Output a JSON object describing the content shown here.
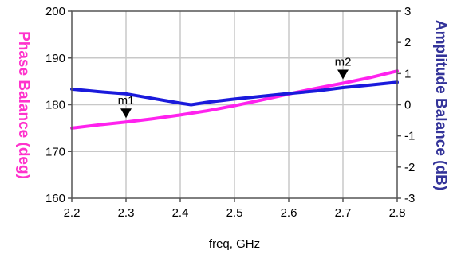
{
  "chart_data": {
    "type": "line",
    "xlabel": "freq, GHz",
    "xlim": [
      2.2,
      2.8
    ],
    "xticks": [
      2.2,
      2.3,
      2.4,
      2.5,
      2.6,
      2.7,
      2.8
    ],
    "xtick_labels": [
      "2.2",
      "2.3",
      "2.4",
      "2.5",
      "2.6",
      "2.7",
      "2.8"
    ],
    "y_left": {
      "label": "Phase Balance (deg)",
      "color": "#ff33cc",
      "lim": [
        160,
        200
      ],
      "ticks": [
        160,
        170,
        180,
        190,
        200
      ],
      "tick_labels": [
        "160",
        "170",
        "180",
        "190",
        "200"
      ]
    },
    "y_right": {
      "label": "Amplitude Balance (dB)",
      "color": "#333399",
      "lim": [
        -3,
        3
      ],
      "ticks": [
        -3,
        -2,
        -1,
        0,
        1,
        2,
        3
      ],
      "tick_labels": [
        "-3",
        "-2",
        "-1",
        "0",
        "1",
        "2",
        "3"
      ]
    },
    "grid": true,
    "series": [
      {
        "axis": "left",
        "color": "#ff22ee",
        "x": [
          2.2,
          2.25,
          2.3,
          2.35,
          2.4,
          2.45,
          2.5,
          2.55,
          2.6,
          2.65,
          2.7,
          2.75,
          2.8
        ],
        "values": [
          175.0,
          175.7,
          176.3,
          177.0,
          177.8,
          178.7,
          179.8,
          181.0,
          182.3,
          183.5,
          184.6,
          185.8,
          187.2
        ]
      },
      {
        "axis": "right",
        "color": "#1a1adc",
        "x": [
          2.2,
          2.25,
          2.3,
          2.35,
          2.4,
          2.42,
          2.45,
          2.5,
          2.55,
          2.6,
          2.65,
          2.7,
          2.75,
          2.8
        ],
        "values": [
          0.5,
          0.42,
          0.35,
          0.2,
          0.05,
          0.0,
          0.08,
          0.18,
          0.27,
          0.36,
          0.44,
          0.55,
          0.63,
          0.72
        ]
      }
    ],
    "markers": [
      {
        "label": "m1",
        "x": 2.3,
        "y": 176.3
      },
      {
        "label": "m2",
        "x": 2.7,
        "y": 184.6
      }
    ]
  }
}
